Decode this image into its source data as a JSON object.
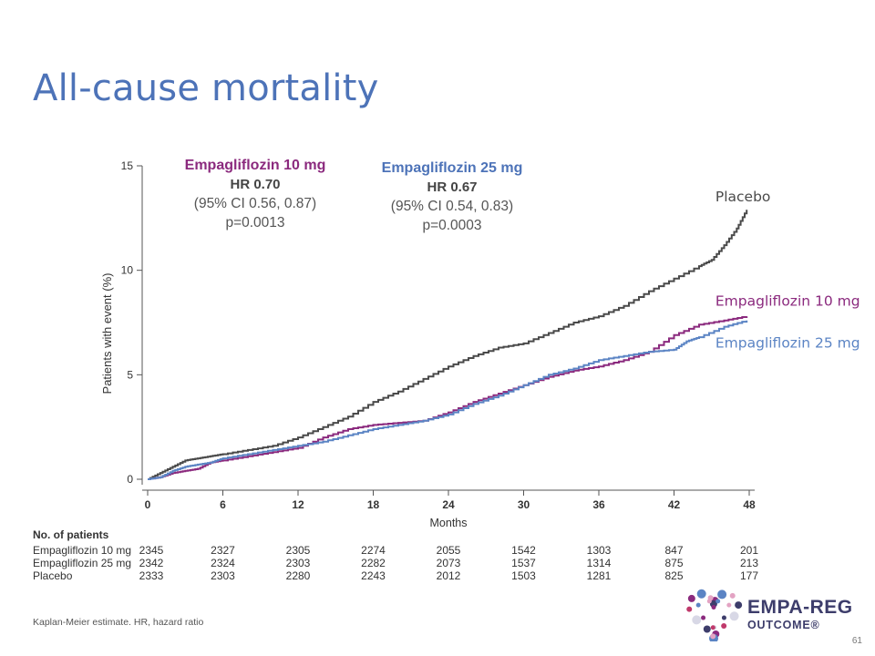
{
  "title": "All-cause mortality",
  "hr_annotations": [
    {
      "name": "Empagliflozin 10 mg",
      "hr": "HR 0.70",
      "ci": "(95% CI 0.56, 0.87)",
      "p": "p=0.0013"
    },
    {
      "name": "Empagliflozin 25 mg",
      "hr": "HR 0.67",
      "ci": "(95% CI 0.54, 0.83)",
      "p": "p=0.0003"
    }
  ],
  "chart_data": {
    "type": "line",
    "step": true,
    "xlabel": "Months",
    "ylabel": "Patients with event (%)",
    "x_ticks": [
      0,
      6,
      12,
      18,
      24,
      30,
      36,
      42,
      48
    ],
    "y_ticks": [
      0,
      5,
      10,
      15
    ],
    "xlim": [
      0,
      48
    ],
    "ylim": [
      0,
      15
    ],
    "grid": false,
    "colors": {
      "placebo": "#4a4a4a",
      "empa10": "#8b2a7e",
      "empa25": "#5b84c4"
    },
    "series": [
      {
        "name": "Placebo",
        "color_key": "placebo",
        "x": [
          0,
          1,
          2,
          3,
          4,
          5,
          6,
          8,
          10,
          12,
          14,
          16,
          18,
          20,
          22,
          24,
          26,
          28,
          30,
          32,
          34,
          36,
          38,
          40,
          42,
          44,
          45,
          46,
          47,
          47.8
        ],
        "y": [
          0,
          0.3,
          0.6,
          0.9,
          1.0,
          1.1,
          1.2,
          1.4,
          1.6,
          2.0,
          2.5,
          3.0,
          3.7,
          4.2,
          4.8,
          5.4,
          5.9,
          6.3,
          6.5,
          7.0,
          7.5,
          7.8,
          8.3,
          9.0,
          9.6,
          10.2,
          10.5,
          11.2,
          12.0,
          12.9
        ]
      },
      {
        "name": "Empagliflozin 10 mg",
        "color_key": "empa10",
        "x": [
          0,
          1,
          2,
          3,
          4,
          5,
          6,
          8,
          10,
          12,
          14,
          16,
          18,
          20,
          22,
          24,
          26,
          28,
          30,
          32,
          34,
          36,
          38,
          40,
          42,
          44,
          46,
          47.8
        ],
        "y": [
          0,
          0.1,
          0.3,
          0.4,
          0.5,
          0.8,
          0.9,
          1.1,
          1.3,
          1.5,
          2.0,
          2.4,
          2.6,
          2.7,
          2.8,
          3.2,
          3.7,
          4.1,
          4.5,
          4.9,
          5.2,
          5.4,
          5.7,
          6.1,
          6.9,
          7.4,
          7.6,
          7.8
        ]
      },
      {
        "name": "Empagliflozin 25 mg",
        "color_key": "empa25",
        "x": [
          0,
          1,
          2,
          3,
          4,
          5,
          6,
          8,
          10,
          12,
          14,
          16,
          18,
          20,
          22,
          24,
          26,
          28,
          30,
          32,
          34,
          36,
          38,
          40,
          42,
          43,
          44,
          46,
          47.8
        ],
        "y": [
          0,
          0.1,
          0.4,
          0.6,
          0.7,
          0.8,
          1.0,
          1.2,
          1.4,
          1.6,
          1.8,
          2.1,
          2.4,
          2.6,
          2.8,
          3.1,
          3.6,
          4.0,
          4.5,
          5.0,
          5.3,
          5.7,
          5.9,
          6.1,
          6.2,
          6.6,
          6.8,
          7.3,
          7.6
        ]
      }
    ],
    "series_labels": [
      {
        "text": "Placebo",
        "color_key": "placebo",
        "x": 45.3,
        "y": 13.3
      },
      {
        "text": "Empagliflozin 10 mg",
        "color_key": "empa10",
        "x": 45.3,
        "y": 8.3
      },
      {
        "text": "Empagliflozin 25 mg",
        "color_key": "empa25",
        "x": 45.3,
        "y": 6.3
      }
    ]
  },
  "risk_table": {
    "heading": "No. of patients",
    "months": [
      0,
      6,
      12,
      18,
      24,
      30,
      36,
      42,
      48
    ],
    "rows": [
      {
        "label": "Empagliflozin 10 mg",
        "values": [
          "2345",
          "2327",
          "2305",
          "2274",
          "2055",
          "1542",
          "1303",
          "847",
          "201"
        ]
      },
      {
        "label": "Empagliflozin 25 mg",
        "values": [
          "2342",
          "2324",
          "2303",
          "2282",
          "2073",
          "1537",
          "1314",
          "875",
          "213"
        ]
      },
      {
        "label": "Placebo",
        "values": [
          "2333",
          "2303",
          "2280",
          "2243",
          "2012",
          "1503",
          "1281",
          "825",
          "177"
        ]
      }
    ]
  },
  "footnote": "Kaplan-Meier estimate. HR, hazard ratio",
  "page_number": "61",
  "logo": {
    "line1": "EMPA-REG",
    "line2": "OUTCOME®"
  }
}
